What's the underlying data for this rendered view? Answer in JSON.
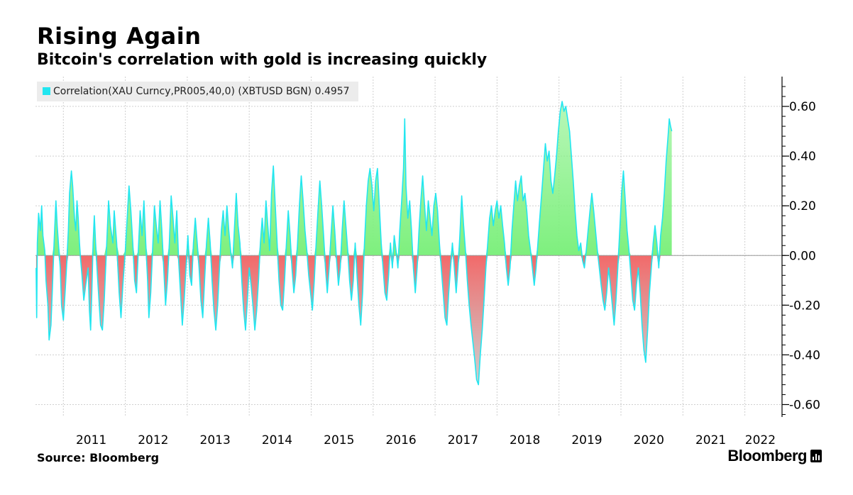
{
  "header": {
    "title": "Rising Again",
    "subtitle": "Bitcoin's correlation with gold is increasing quickly"
  },
  "legend": {
    "label": "Correlation(XAU Curncy,PR005,40,0) (XBTUSD BGN) 0.4957",
    "color": "#22e6f0"
  },
  "footer": {
    "source": "Source: Bloomberg",
    "brand": "Bloomberg"
  },
  "chart_data": {
    "type": "area",
    "title": "Rising Again",
    "subtitle": "Bitcoin's correlation with gold is increasing quickly",
    "series_name": "Correlation(XAU Curncy,PR005,40,0) (XBTUSD BGN)",
    "last_value": 0.4957,
    "ylim": [
      -0.65,
      0.72
    ],
    "yticks": [
      -0.6,
      -0.4,
      -0.2,
      0.0,
      0.2,
      0.4,
      0.6
    ],
    "ytick_labels": [
      "-0.60",
      "-0.40",
      "-0.20",
      "0.00",
      "0.20",
      "0.40",
      "0.60"
    ],
    "xlim": [
      2010.55,
      2022.6
    ],
    "year_labels": [
      "2011",
      "2012",
      "2013",
      "2014",
      "2015",
      "2016",
      "2017",
      "2018",
      "2019",
      "2020",
      "2021",
      "2022"
    ],
    "year_dividers": [
      2011,
      2012,
      2013,
      2014,
      2015,
      2016,
      2017,
      2018,
      2019,
      2020,
      2021,
      2022
    ],
    "colors": {
      "line": "#22e6f0",
      "positive_fill": "#7ef07e",
      "negative_fill": "#f26a6a",
      "grid": "#cfcfcf"
    },
    "grid": true,
    "points": [
      [
        2010.56,
        -0.05
      ],
      [
        2010.57,
        -0.25
      ],
      [
        2010.58,
        0.05
      ],
      [
        2010.6,
        0.17
      ],
      [
        2010.63,
        0.1
      ],
      [
        2010.65,
        0.2
      ],
      [
        2010.67,
        0.08
      ],
      [
        2010.7,
        0.02
      ],
      [
        2010.72,
        -0.1
      ],
      [
        2010.75,
        -0.2
      ],
      [
        2010.77,
        -0.34
      ],
      [
        2010.8,
        -0.28
      ],
      [
        2010.82,
        -0.15
      ],
      [
        2010.85,
        0.05
      ],
      [
        2010.88,
        0.22
      ],
      [
        2010.9,
        0.12
      ],
      [
        2010.92,
        0.05
      ],
      [
        2010.95,
        -0.05
      ],
      [
        2010.97,
        -0.2
      ],
      [
        2011.0,
        -0.26
      ],
      [
        2011.03,
        -0.14
      ],
      [
        2011.05,
        -0.05
      ],
      [
        2011.08,
        0.1
      ],
      [
        2011.1,
        0.25
      ],
      [
        2011.13,
        0.34
      ],
      [
        2011.15,
        0.28
      ],
      [
        2011.18,
        0.15
      ],
      [
        2011.2,
        0.1
      ],
      [
        2011.22,
        0.22
      ],
      [
        2011.24,
        0.15
      ],
      [
        2011.26,
        0.05
      ],
      [
        2011.28,
        -0.02
      ],
      [
        2011.3,
        -0.08
      ],
      [
        2011.33,
        -0.18
      ],
      [
        2011.36,
        -0.12
      ],
      [
        2011.4,
        -0.05
      ],
      [
        2011.42,
        -0.22
      ],
      [
        2011.44,
        -0.3
      ],
      [
        2011.46,
        -0.15
      ],
      [
        2011.48,
        0.05
      ],
      [
        2011.5,
        0.16
      ],
      [
        2011.52,
        0.05
      ],
      [
        2011.55,
        -0.08
      ],
      [
        2011.58,
        -0.2
      ],
      [
        2011.6,
        -0.28
      ],
      [
        2011.63,
        -0.3
      ],
      [
        2011.66,
        -0.18
      ],
      [
        2011.7,
        0.05
      ],
      [
        2011.73,
        0.22
      ],
      [
        2011.76,
        0.12
      ],
      [
        2011.8,
        0.05
      ],
      [
        2011.82,
        0.18
      ],
      [
        2011.86,
        0.05
      ],
      [
        2011.9,
        -0.15
      ],
      [
        2011.93,
        -0.25
      ],
      [
        2011.96,
        -0.12
      ],
      [
        2012.0,
        0.02
      ],
      [
        2012.03,
        0.15
      ],
      [
        2012.06,
        0.28
      ],
      [
        2012.09,
        0.18
      ],
      [
        2012.12,
        0.05
      ],
      [
        2012.15,
        -0.1
      ],
      [
        2012.18,
        -0.15
      ],
      [
        2012.21,
        0.02
      ],
      [
        2012.24,
        0.18
      ],
      [
        2012.27,
        0.08
      ],
      [
        2012.3,
        0.22
      ],
      [
        2012.33,
        0.05
      ],
      [
        2012.36,
        -0.1
      ],
      [
        2012.38,
        -0.25
      ],
      [
        2012.41,
        -0.15
      ],
      [
        2012.44,
        0.02
      ],
      [
        2012.47,
        0.2
      ],
      [
        2012.5,
        0.12
      ],
      [
        2012.53,
        0.05
      ],
      [
        2012.56,
        0.22
      ],
      [
        2012.59,
        0.1
      ],
      [
        2012.62,
        -0.05
      ],
      [
        2012.65,
        -0.2
      ],
      [
        2012.68,
        -0.1
      ],
      [
        2012.71,
        0.05
      ],
      [
        2012.74,
        0.24
      ],
      [
        2012.77,
        0.15
      ],
      [
        2012.8,
        0.05
      ],
      [
        2012.83,
        0.18
      ],
      [
        2012.86,
        -0.02
      ],
      [
        2012.89,
        -0.15
      ],
      [
        2012.92,
        -0.28
      ],
      [
        2012.95,
        -0.18
      ],
      [
        2012.98,
        -0.05
      ],
      [
        2013.01,
        0.08
      ],
      [
        2013.04,
        -0.08
      ],
      [
        2013.07,
        -0.12
      ],
      [
        2013.1,
        0.05
      ],
      [
        2013.13,
        0.15
      ],
      [
        2013.16,
        0.05
      ],
      [
        2013.19,
        -0.05
      ],
      [
        2013.22,
        -0.18
      ],
      [
        2013.25,
        -0.25
      ],
      [
        2013.28,
        -0.1
      ],
      [
        2013.31,
        0.05
      ],
      [
        2013.34,
        0.15
      ],
      [
        2013.37,
        0.05
      ],
      [
        2013.4,
        -0.1
      ],
      [
        2013.43,
        -0.22
      ],
      [
        2013.46,
        -0.3
      ],
      [
        2013.49,
        -0.2
      ],
      [
        2013.52,
        -0.05
      ],
      [
        2013.55,
        0.1
      ],
      [
        2013.58,
        0.18
      ],
      [
        2013.61,
        0.08
      ],
      [
        2013.64,
        0.2
      ],
      [
        2013.67,
        0.1
      ],
      [
        2013.7,
        0.02
      ],
      [
        2013.73,
        -0.05
      ],
      [
        2013.76,
        0.1
      ],
      [
        2013.79,
        0.25
      ],
      [
        2013.82,
        0.12
      ],
      [
        2013.85,
        0.05
      ],
      [
        2013.88,
        -0.1
      ],
      [
        2013.91,
        -0.22
      ],
      [
        2013.94,
        -0.3
      ],
      [
        2013.97,
        -0.18
      ],
      [
        2014.0,
        -0.05
      ],
      [
        2014.03,
        -0.12
      ],
      [
        2014.06,
        -0.2
      ],
      [
        2014.09,
        -0.3
      ],
      [
        2014.12,
        -0.22
      ],
      [
        2014.15,
        -0.1
      ],
      [
        2014.18,
        0.05
      ],
      [
        2014.21,
        0.15
      ],
      [
        2014.24,
        0.05
      ],
      [
        2014.27,
        0.22
      ],
      [
        2014.3,
        0.12
      ],
      [
        2014.33,
        0.02
      ],
      [
        2014.36,
        0.25
      ],
      [
        2014.39,
        0.36
      ],
      [
        2014.42,
        0.2
      ],
      [
        2014.45,
        0.05
      ],
      [
        2014.48,
        -0.1
      ],
      [
        2014.51,
        -0.2
      ],
      [
        2014.54,
        -0.22
      ],
      [
        2014.57,
        -0.1
      ],
      [
        2014.6,
        0.05
      ],
      [
        2014.63,
        0.18
      ],
      [
        2014.66,
        0.08
      ],
      [
        2014.69,
        -0.05
      ],
      [
        2014.72,
        -0.15
      ],
      [
        2014.75,
        -0.08
      ],
      [
        2014.78,
        0.05
      ],
      [
        2014.81,
        0.2
      ],
      [
        2014.84,
        0.32
      ],
      [
        2014.87,
        0.22
      ],
      [
        2014.9,
        0.1
      ],
      [
        2014.93,
        0.02
      ],
      [
        2014.96,
        -0.08
      ],
      [
        2014.99,
        -0.15
      ],
      [
        2015.02,
        -0.22
      ],
      [
        2015.05,
        -0.1
      ],
      [
        2015.08,
        0.05
      ],
      [
        2015.11,
        0.18
      ],
      [
        2015.14,
        0.3
      ],
      [
        2015.17,
        0.2
      ],
      [
        2015.2,
        0.08
      ],
      [
        2015.23,
        -0.05
      ],
      [
        2015.26,
        -0.15
      ],
      [
        2015.29,
        -0.05
      ],
      [
        2015.32,
        0.08
      ],
      [
        2015.35,
        0.2
      ],
      [
        2015.38,
        0.1
      ],
      [
        2015.41,
        -0.02
      ],
      [
        2015.44,
        -0.12
      ],
      [
        2015.47,
        -0.05
      ],
      [
        2015.5,
        0.1
      ],
      [
        2015.53,
        0.22
      ],
      [
        2015.56,
        0.12
      ],
      [
        2015.59,
        0.02
      ],
      [
        2015.62,
        -0.1
      ],
      [
        2015.65,
        -0.18
      ],
      [
        2015.68,
        -0.1
      ],
      [
        2015.71,
        0.05
      ],
      [
        2015.74,
        -0.08
      ],
      [
        2015.77,
        -0.2
      ],
      [
        2015.8,
        -0.28
      ],
      [
        2015.83,
        -0.15
      ],
      [
        2015.86,
        0.05
      ],
      [
        2015.89,
        0.2
      ],
      [
        2015.92,
        0.3
      ],
      [
        2015.95,
        0.35
      ],
      [
        2015.98,
        0.28
      ],
      [
        2016.01,
        0.18
      ],
      [
        2016.04,
        0.3
      ],
      [
        2016.07,
        0.35
      ],
      [
        2016.1,
        0.2
      ],
      [
        2016.13,
        0.05
      ],
      [
        2016.16,
        -0.05
      ],
      [
        2016.19,
        -0.15
      ],
      [
        2016.22,
        -0.18
      ],
      [
        2016.25,
        -0.08
      ],
      [
        2016.28,
        0.05
      ],
      [
        2016.31,
        -0.05
      ],
      [
        2016.34,
        0.08
      ],
      [
        2016.37,
        0.02
      ],
      [
        2016.4,
        -0.05
      ],
      [
        2016.43,
        0.1
      ],
      [
        2016.46,
        0.22
      ],
      [
        2016.49,
        0.35
      ],
      [
        2016.51,
        0.55
      ],
      [
        2016.53,
        0.28
      ],
      [
        2016.56,
        0.15
      ],
      [
        2016.59,
        0.22
      ],
      [
        2016.62,
        0.1
      ],
      [
        2016.65,
        -0.05
      ],
      [
        2016.68,
        -0.15
      ],
      [
        2016.71,
        -0.05
      ],
      [
        2016.74,
        0.1
      ],
      [
        2016.77,
        0.22
      ],
      [
        2016.8,
        0.32
      ],
      [
        2016.83,
        0.2
      ],
      [
        2016.86,
        0.1
      ],
      [
        2016.89,
        0.22
      ],
      [
        2016.92,
        0.15
      ],
      [
        2016.95,
        0.08
      ],
      [
        2016.98,
        0.2
      ],
      [
        2017.01,
        0.25
      ],
      [
        2017.04,
        0.18
      ],
      [
        2017.07,
        0.05
      ],
      [
        2017.1,
        -0.05
      ],
      [
        2017.13,
        -0.15
      ],
      [
        2017.16,
        -0.25
      ],
      [
        2017.19,
        -0.28
      ],
      [
        2017.22,
        -0.15
      ],
      [
        2017.25,
        -0.05
      ],
      [
        2017.28,
        0.05
      ],
      [
        2017.31,
        -0.05
      ],
      [
        2017.34,
        -0.15
      ],
      [
        2017.37,
        -0.05
      ],
      [
        2017.4,
        0.08
      ],
      [
        2017.43,
        0.24
      ],
      [
        2017.46,
        0.12
      ],
      [
        2017.49,
        0.02
      ],
      [
        2017.52,
        -0.1
      ],
      [
        2017.55,
        -0.2
      ],
      [
        2017.58,
        -0.28
      ],
      [
        2017.61,
        -0.35
      ],
      [
        2017.64,
        -0.42
      ],
      [
        2017.67,
        -0.5
      ],
      [
        2017.7,
        -0.52
      ],
      [
        2017.73,
        -0.4
      ],
      [
        2017.76,
        -0.3
      ],
      [
        2017.79,
        -0.18
      ],
      [
        2017.82,
        -0.05
      ],
      [
        2017.85,
        0.05
      ],
      [
        2017.88,
        0.15
      ],
      [
        2017.91,
        0.2
      ],
      [
        2017.94,
        0.12
      ],
      [
        2017.97,
        0.18
      ],
      [
        2018.0,
        0.22
      ],
      [
        2018.03,
        0.15
      ],
      [
        2018.06,
        0.2
      ],
      [
        2018.09,
        0.12
      ],
      [
        2018.12,
        0.05
      ],
      [
        2018.15,
        -0.05
      ],
      [
        2018.18,
        -0.12
      ],
      [
        2018.21,
        -0.05
      ],
      [
        2018.24,
        0.1
      ],
      [
        2018.27,
        0.2
      ],
      [
        2018.3,
        0.3
      ],
      [
        2018.33,
        0.22
      ],
      [
        2018.36,
        0.28
      ],
      [
        2018.39,
        0.32
      ],
      [
        2018.42,
        0.22
      ],
      [
        2018.45,
        0.25
      ],
      [
        2018.48,
        0.18
      ],
      [
        2018.51,
        0.08
      ],
      [
        2018.54,
        0.02
      ],
      [
        2018.57,
        -0.05
      ],
      [
        2018.6,
        -0.12
      ],
      [
        2018.63,
        -0.05
      ],
      [
        2018.66,
        0.05
      ],
      [
        2018.69,
        0.15
      ],
      [
        2018.72,
        0.25
      ],
      [
        2018.75,
        0.35
      ],
      [
        2018.78,
        0.45
      ],
      [
        2018.81,
        0.38
      ],
      [
        2018.84,
        0.42
      ],
      [
        2018.87,
        0.3
      ],
      [
        2018.9,
        0.25
      ],
      [
        2018.93,
        0.32
      ],
      [
        2018.96,
        0.4
      ],
      [
        2018.99,
        0.5
      ],
      [
        2019.02,
        0.58
      ],
      [
        2019.05,
        0.62
      ],
      [
        2019.08,
        0.58
      ],
      [
        2019.11,
        0.6
      ],
      [
        2019.14,
        0.55
      ],
      [
        2019.17,
        0.5
      ],
      [
        2019.2,
        0.4
      ],
      [
        2019.23,
        0.3
      ],
      [
        2019.26,
        0.18
      ],
      [
        2019.29,
        0.08
      ],
      [
        2019.32,
        0.02
      ],
      [
        2019.35,
        0.05
      ],
      [
        2019.38,
        -0.02
      ],
      [
        2019.41,
        -0.05
      ],
      [
        2019.44,
        0.02
      ],
      [
        2019.47,
        0.1
      ],
      [
        2019.5,
        0.18
      ],
      [
        2019.53,
        0.25
      ],
      [
        2019.56,
        0.18
      ],
      [
        2019.59,
        0.1
      ],
      [
        2019.62,
        0.02
      ],
      [
        2019.65,
        -0.05
      ],
      [
        2019.68,
        -0.12
      ],
      [
        2019.71,
        -0.18
      ],
      [
        2019.74,
        -0.22
      ],
      [
        2019.77,
        -0.15
      ],
      [
        2019.8,
        -0.05
      ],
      [
        2019.83,
        -0.12
      ],
      [
        2019.86,
        -0.2
      ],
      [
        2019.89,
        -0.28
      ],
      [
        2019.92,
        -0.18
      ],
      [
        2019.95,
        -0.05
      ],
      [
        2019.98,
        0.1
      ],
      [
        2020.01,
        0.25
      ],
      [
        2020.04,
        0.34
      ],
      [
        2020.07,
        0.22
      ],
      [
        2020.1,
        0.1
      ],
      [
        2020.13,
        0.02
      ],
      [
        2020.16,
        -0.08
      ],
      [
        2020.19,
        -0.18
      ],
      [
        2020.22,
        -0.22
      ],
      [
        2020.25,
        -0.12
      ],
      [
        2020.28,
        -0.05
      ],
      [
        2020.31,
        -0.15
      ],
      [
        2020.34,
        -0.28
      ],
      [
        2020.37,
        -0.38
      ],
      [
        2020.4,
        -0.43
      ],
      [
        2020.43,
        -0.3
      ],
      [
        2020.46,
        -0.15
      ],
      [
        2020.49,
        -0.05
      ],
      [
        2020.52,
        0.05
      ],
      [
        2020.55,
        0.12
      ],
      [
        2020.58,
        0.05
      ],
      [
        2020.61,
        -0.05
      ],
      [
        2020.64,
        0.08
      ],
      [
        2020.67,
        0.15
      ],
      [
        2020.7,
        0.25
      ],
      [
        2020.73,
        0.38
      ],
      [
        2020.76,
        0.48
      ],
      [
        2020.78,
        0.55
      ],
      [
        2020.8,
        0.52
      ],
      [
        2020.82,
        0.5
      ]
    ]
  }
}
